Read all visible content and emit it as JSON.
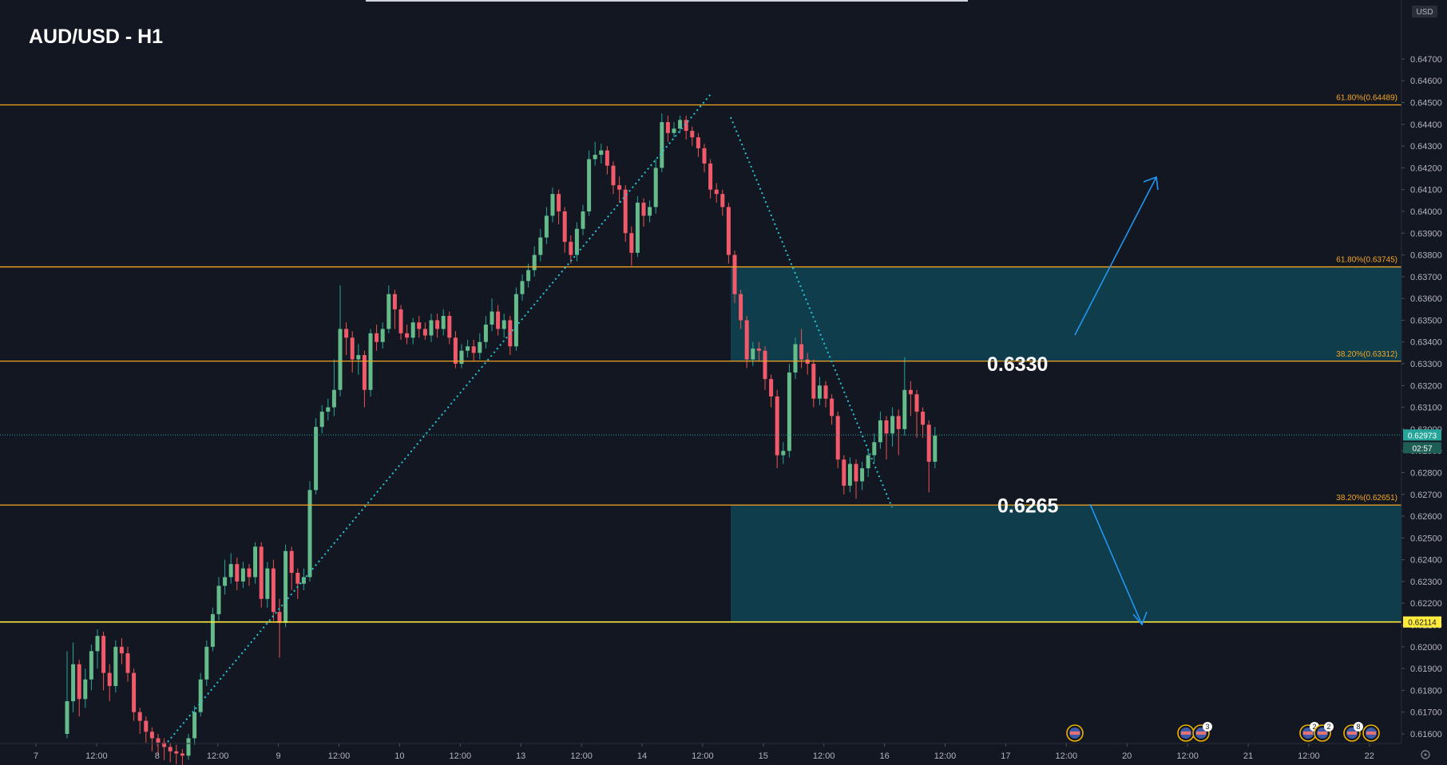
{
  "chart_data": {
    "type": "candlestick",
    "title": "AUD/USD - H1",
    "currency_badge": "USD",
    "y_axis": {
      "ylim": [
        0.61556,
        0.64916
      ],
      "ticks": [
        "0.64700",
        "0.64600",
        "0.64500",
        "0.64400",
        "0.64300",
        "0.64200",
        "0.64100",
        "0.64000",
        "0.63900",
        "0.63800",
        "0.63700",
        "0.63600",
        "0.63500",
        "0.63400",
        "0.63300",
        "0.63200",
        "0.63100",
        "0.63000",
        "0.62900",
        "0.62800",
        "0.62700",
        "0.62600",
        "0.62500",
        "0.62400",
        "0.62300",
        "0.62200",
        "0.62100",
        "0.62000",
        "0.61900",
        "0.61800",
        "0.61700",
        "0.61600"
      ]
    },
    "x_axis": {
      "ticks": [
        "7",
        "12:00",
        "8",
        "12:00",
        "9",
        "12:00",
        "10",
        "12:00",
        "13",
        "12:00",
        "14",
        "12:00",
        "15",
        "12:00",
        "16",
        "12:00",
        "17",
        "12:00",
        "20",
        "12:00",
        "21",
        "12:00",
        "22"
      ]
    },
    "fib_levels": [
      {
        "label": "61.80%(0.64489)",
        "value": 0.64489,
        "color": "#f5a623"
      },
      {
        "label": "61.80%(0.63745)",
        "value": 0.63745,
        "color": "#f5a623"
      },
      {
        "label": "38.20%(0.63312)",
        "value": 0.63312,
        "color": "#f5a623"
      },
      {
        "label": "38.20%(0.62651)",
        "value": 0.62651,
        "color": "#f5a623"
      }
    ],
    "support_line": {
      "label": "0.62114",
      "value": 0.62114,
      "color": "#ffeb3b"
    },
    "zones": [
      {
        "from": 0.63312,
        "to": 0.63745,
        "color": "#0f3d4b"
      },
      {
        "from": 0.62114,
        "to": 0.62651,
        "color": "#0f3d4b"
      }
    ],
    "annotations": [
      {
        "text": "0.6330",
        "value": 0.633
      },
      {
        "text": "0.6265",
        "value": 0.6265
      }
    ],
    "current_price": {
      "label": "0.62973",
      "value": 0.62973,
      "countdown": "02:57"
    },
    "candles": [
      [
        0.616,
        0.6175,
        0.6198,
        0.6158
      ],
      [
        0.6175,
        0.6192,
        0.6202,
        0.617
      ],
      [
        0.6192,
        0.6176,
        0.6194,
        0.6168
      ],
      [
        0.6176,
        0.6185,
        0.619,
        0.6172
      ],
      [
        0.6185,
        0.6198,
        0.6201,
        0.618
      ],
      [
        0.6198,
        0.6205,
        0.6208,
        0.619
      ],
      [
        0.6205,
        0.6188,
        0.6207,
        0.618
      ],
      [
        0.6188,
        0.6182,
        0.6192,
        0.6175
      ],
      [
        0.6182,
        0.62,
        0.6203,
        0.6179
      ],
      [
        0.62,
        0.6197,
        0.6204,
        0.6192
      ],
      [
        0.6197,
        0.6188,
        0.62,
        0.6184
      ],
      [
        0.6188,
        0.617,
        0.619,
        0.6166
      ],
      [
        0.617,
        0.6166,
        0.6172,
        0.616
      ],
      [
        0.6166,
        0.6161,
        0.6168,
        0.6156
      ],
      [
        0.6161,
        0.6158,
        0.6163,
        0.6152
      ],
      [
        0.6158,
        0.6156,
        0.616,
        0.615
      ],
      [
        0.6156,
        0.6154,
        0.6158,
        0.6148
      ],
      [
        0.6154,
        0.6152,
        0.6156,
        0.6147
      ],
      [
        0.6152,
        0.6151,
        0.6155,
        0.6146
      ],
      [
        0.6151,
        0.615,
        0.6153,
        0.6145
      ],
      [
        0.615,
        0.6158,
        0.616,
        0.6148
      ],
      [
        0.6158,
        0.617,
        0.6173,
        0.6155
      ],
      [
        0.617,
        0.6185,
        0.6188,
        0.6168
      ],
      [
        0.6185,
        0.62,
        0.6203,
        0.6182
      ],
      [
        0.62,
        0.6215,
        0.6218,
        0.6198
      ],
      [
        0.6215,
        0.6228,
        0.6232,
        0.6212
      ],
      [
        0.6228,
        0.6232,
        0.624,
        0.6224
      ],
      [
        0.6232,
        0.6238,
        0.6243,
        0.6229
      ],
      [
        0.6238,
        0.623,
        0.6241,
        0.6226
      ],
      [
        0.623,
        0.6236,
        0.6239,
        0.6227
      ],
      [
        0.6236,
        0.6232,
        0.6238,
        0.6228
      ],
      [
        0.6232,
        0.6246,
        0.6248,
        0.6229
      ],
      [
        0.6246,
        0.6222,
        0.6248,
        0.6218
      ],
      [
        0.6222,
        0.6236,
        0.6239,
        0.6218
      ],
      [
        0.6236,
        0.6216,
        0.624,
        0.6212
      ],
      [
        0.6216,
        0.6211,
        0.6222,
        0.6195
      ],
      [
        0.6211,
        0.6244,
        0.6247,
        0.6209
      ],
      [
        0.6244,
        0.6234,
        0.6246,
        0.6226
      ],
      [
        0.6234,
        0.6229,
        0.6236,
        0.6222
      ],
      [
        0.6229,
        0.6232,
        0.6236,
        0.6226
      ],
      [
        0.6232,
        0.6272,
        0.6276,
        0.623
      ],
      [
        0.6272,
        0.6301,
        0.6305,
        0.627
      ],
      [
        0.6301,
        0.6308,
        0.6311,
        0.6298
      ],
      [
        0.6308,
        0.631,
        0.6314,
        0.6304
      ],
      [
        0.631,
        0.6318,
        0.6332,
        0.6306
      ],
      [
        0.6318,
        0.6346,
        0.6366,
        0.6315
      ],
      [
        0.6346,
        0.6342,
        0.6349,
        0.6334
      ],
      [
        0.6342,
        0.6332,
        0.6345,
        0.6326
      ],
      [
        0.6332,
        0.6334,
        0.6339,
        0.6325
      ],
      [
        0.6334,
        0.6318,
        0.6336,
        0.631
      ],
      [
        0.6318,
        0.6344,
        0.6346,
        0.6315
      ],
      [
        0.6344,
        0.634,
        0.6348,
        0.6336
      ],
      [
        0.634,
        0.6346,
        0.6349,
        0.6337
      ],
      [
        0.6346,
        0.6362,
        0.6366,
        0.6344
      ],
      [
        0.6362,
        0.6355,
        0.6364,
        0.6346
      ],
      [
        0.6355,
        0.6344,
        0.6357,
        0.6341
      ],
      [
        0.6344,
        0.6342,
        0.6348,
        0.6339
      ],
      [
        0.6342,
        0.6349,
        0.6351,
        0.6339
      ],
      [
        0.6349,
        0.6346,
        0.6352,
        0.6342
      ],
      [
        0.6346,
        0.6343,
        0.6349,
        0.6341
      ],
      [
        0.6343,
        0.635,
        0.6353,
        0.634
      ],
      [
        0.635,
        0.6346,
        0.6353,
        0.6342
      ],
      [
        0.6346,
        0.6352,
        0.6355,
        0.6343
      ],
      [
        0.6352,
        0.6342,
        0.6354,
        0.6339
      ],
      [
        0.6342,
        0.633,
        0.6345,
        0.6328
      ],
      [
        0.633,
        0.6336,
        0.6339,
        0.6328
      ],
      [
        0.6336,
        0.6338,
        0.6341,
        0.6333
      ],
      [
        0.6338,
        0.6335,
        0.6341,
        0.6331
      ],
      [
        0.6335,
        0.634,
        0.6344,
        0.6332
      ],
      [
        0.634,
        0.6348,
        0.6352,
        0.6337
      ],
      [
        0.6348,
        0.6354,
        0.636,
        0.6345
      ],
      [
        0.6354,
        0.6346,
        0.6357,
        0.6343
      ],
      [
        0.6346,
        0.635,
        0.6353,
        0.6342
      ],
      [
        0.635,
        0.6338,
        0.6352,
        0.6334
      ],
      [
        0.6338,
        0.6362,
        0.6365,
        0.6336
      ],
      [
        0.6362,
        0.6368,
        0.6371,
        0.6359
      ],
      [
        0.6368,
        0.6373,
        0.6376,
        0.6365
      ],
      [
        0.6373,
        0.638,
        0.6384,
        0.637
      ],
      [
        0.638,
        0.6388,
        0.6392,
        0.6377
      ],
      [
        0.6388,
        0.6398,
        0.6402,
        0.6385
      ],
      [
        0.6398,
        0.6408,
        0.6411,
        0.6395
      ],
      [
        0.6408,
        0.64,
        0.641,
        0.6394
      ],
      [
        0.64,
        0.6386,
        0.6402,
        0.6381
      ],
      [
        0.6386,
        0.638,
        0.6389,
        0.6376
      ],
      [
        0.638,
        0.6392,
        0.6395,
        0.6377
      ],
      [
        0.6392,
        0.64,
        0.6403,
        0.6389
      ],
      [
        0.64,
        0.6424,
        0.6428,
        0.6398
      ],
      [
        0.6424,
        0.6426,
        0.6432,
        0.6421
      ],
      [
        0.6426,
        0.6428,
        0.6431,
        0.6422
      ],
      [
        0.6428,
        0.6421,
        0.643,
        0.6417
      ],
      [
        0.6421,
        0.6412,
        0.6423,
        0.6408
      ],
      [
        0.6412,
        0.641,
        0.6416,
        0.6404
      ],
      [
        0.641,
        0.639,
        0.6412,
        0.6386
      ],
      [
        0.639,
        0.6381,
        0.6393,
        0.6375
      ],
      [
        0.6381,
        0.6404,
        0.6407,
        0.6379
      ],
      [
        0.6404,
        0.6398,
        0.6406,
        0.6393
      ],
      [
        0.6398,
        0.6402,
        0.6405,
        0.6395
      ],
      [
        0.6402,
        0.642,
        0.6424,
        0.6399
      ],
      [
        0.642,
        0.6441,
        0.6445,
        0.6418
      ],
      [
        0.6441,
        0.6436,
        0.6444,
        0.6432
      ],
      [
        0.6436,
        0.6438,
        0.6441,
        0.6434
      ],
      [
        0.6438,
        0.6442,
        0.6444,
        0.6436
      ],
      [
        0.6442,
        0.6437,
        0.6444,
        0.6433
      ],
      [
        0.6437,
        0.6434,
        0.6439,
        0.643
      ],
      [
        0.6434,
        0.6429,
        0.6436,
        0.6425
      ],
      [
        0.6429,
        0.6422,
        0.6431,
        0.6418
      ],
      [
        0.6422,
        0.641,
        0.6424,
        0.6406
      ],
      [
        0.641,
        0.6408,
        0.6413,
        0.6404
      ],
      [
        0.6408,
        0.6402,
        0.641,
        0.6398
      ],
      [
        0.6402,
        0.638,
        0.6404,
        0.6376
      ],
      [
        0.638,
        0.6362,
        0.6382,
        0.6358
      ],
      [
        0.6362,
        0.635,
        0.6364,
        0.6346
      ],
      [
        0.635,
        0.6332,
        0.6352,
        0.6328
      ],
      [
        0.6332,
        0.6337,
        0.634,
        0.6329
      ],
      [
        0.6337,
        0.6336,
        0.634,
        0.6331
      ],
      [
        0.6336,
        0.6323,
        0.6338,
        0.6318
      ],
      [
        0.6323,
        0.6315,
        0.6325,
        0.631
      ],
      [
        0.6315,
        0.6288,
        0.6318,
        0.6282
      ],
      [
        0.6288,
        0.629,
        0.6294,
        0.6284
      ],
      [
        0.629,
        0.6326,
        0.633,
        0.6287
      ],
      [
        0.6326,
        0.6339,
        0.6342,
        0.6323
      ],
      [
        0.6339,
        0.6332,
        0.6346,
        0.6328
      ],
      [
        0.6332,
        0.633,
        0.6335,
        0.6325
      ],
      [
        0.633,
        0.6314,
        0.6332,
        0.631
      ],
      [
        0.6314,
        0.632,
        0.6324,
        0.6311
      ],
      [
        0.632,
        0.6314,
        0.6322,
        0.631
      ],
      [
        0.6314,
        0.6306,
        0.6316,
        0.6302
      ],
      [
        0.6306,
        0.6286,
        0.6308,
        0.6282
      ],
      [
        0.6286,
        0.6274,
        0.6288,
        0.627
      ],
      [
        0.6274,
        0.6284,
        0.6287,
        0.6271
      ],
      [
        0.6284,
        0.6276,
        0.6286,
        0.6268
      ],
      [
        0.6276,
        0.6282,
        0.6285,
        0.6272
      ],
      [
        0.6282,
        0.6288,
        0.6291,
        0.6278
      ],
      [
        0.6288,
        0.6294,
        0.6298,
        0.6285
      ],
      [
        0.6294,
        0.6304,
        0.6308,
        0.6291
      ],
      [
        0.6304,
        0.6298,
        0.6306,
        0.6286
      ],
      [
        0.6298,
        0.6306,
        0.631,
        0.6292
      ],
      [
        0.6306,
        0.63,
        0.6309,
        0.6288
      ],
      [
        0.63,
        0.6318,
        0.6333,
        0.6297
      ],
      [
        0.6318,
        0.6316,
        0.6322,
        0.6306
      ],
      [
        0.6316,
        0.6308,
        0.6318,
        0.6296
      ],
      [
        0.6308,
        0.6302,
        0.631,
        0.6296
      ],
      [
        0.6302,
        0.6285,
        0.6304,
        0.6271
      ],
      [
        0.6285,
        0.6297,
        0.6301,
        0.6282
      ]
    ]
  },
  "events": {
    "flags": [
      {
        "time": "17 12:00",
        "badge": ""
      },
      {
        "time": "20 12:00",
        "badge": ""
      },
      {
        "time": "20 12:00",
        "badge": "3"
      },
      {
        "time": "21 12:00",
        "badge": "2"
      },
      {
        "time": "21 12:00",
        "badge": "2"
      },
      {
        "time": "22",
        "badge": "8"
      },
      {
        "time": "22",
        "badge": ""
      }
    ]
  }
}
